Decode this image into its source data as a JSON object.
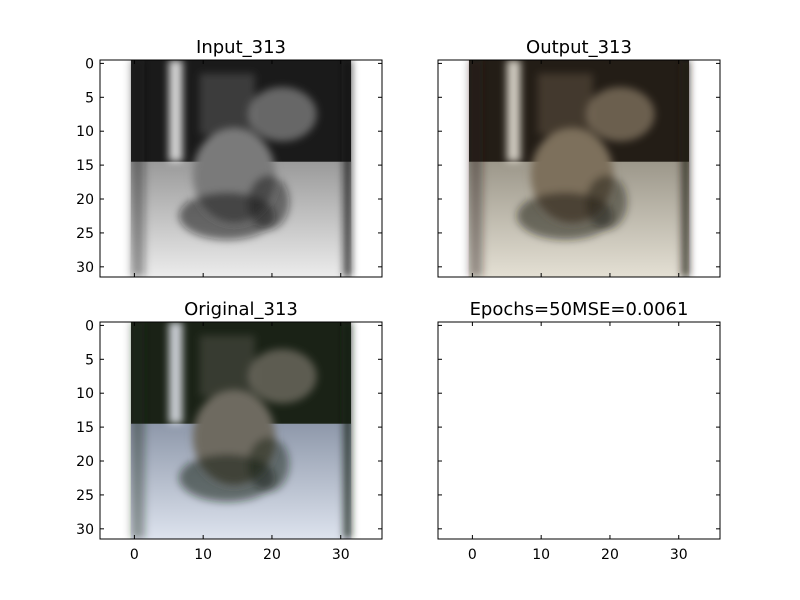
{
  "chart_data": [
    {
      "type": "image",
      "title": "Input_313",
      "image_content": "grayscale photo of a dog",
      "xlim": [
        -5,
        36
      ],
      "ylim": [
        31.5,
        -0.5
      ],
      "x_ticks": [],
      "y_ticks": [
        0,
        5,
        10,
        15,
        20,
        25,
        30
      ],
      "image_extent": [
        -0.5,
        31.5,
        31.5,
        -0.5
      ],
      "palette": {
        "dark": "#1a1a1a",
        "mid": "#7a7a7a",
        "light": "#dcdcdc",
        "bright": "#f2f2f2"
      }
    },
    {
      "type": "image",
      "title": "Output_313",
      "image_content": "sepia-toned reconstruction of a dog",
      "xlim": [
        -5,
        36
      ],
      "ylim": [
        31.5,
        -0.5
      ],
      "x_ticks": [],
      "y_ticks": [],
      "image_extent": [
        -0.5,
        31.5,
        31.5,
        -0.5
      ],
      "palette": {
        "dark": "#231d16",
        "mid": "#7d6f5c",
        "light": "#d8d3c6",
        "bright": "#ede9dd"
      }
    },
    {
      "type": "image",
      "title": "Original_313",
      "image_content": "color photo of a dog",
      "xlim": [
        -5,
        36
      ],
      "ylim": [
        31.5,
        -0.5
      ],
      "x_ticks": [
        0,
        10,
        20,
        30
      ],
      "y_ticks": [
        0,
        5,
        10,
        15,
        20,
        25,
        30
      ],
      "image_extent": [
        -0.5,
        31.5,
        31.5,
        -0.5
      ],
      "palette": {
        "dark": "#1a2216",
        "mid": "#6e6a60",
        "light": "#c8d2e2",
        "bright": "#e6eaf2"
      }
    },
    {
      "type": "empty",
      "title": "Epochs=50MSE=0.0061",
      "xlim": [
        -5,
        36
      ],
      "ylim": [
        31.5,
        -0.5
      ],
      "x_ticks": [
        0,
        10,
        20,
        30
      ],
      "y_ticks": []
    }
  ]
}
